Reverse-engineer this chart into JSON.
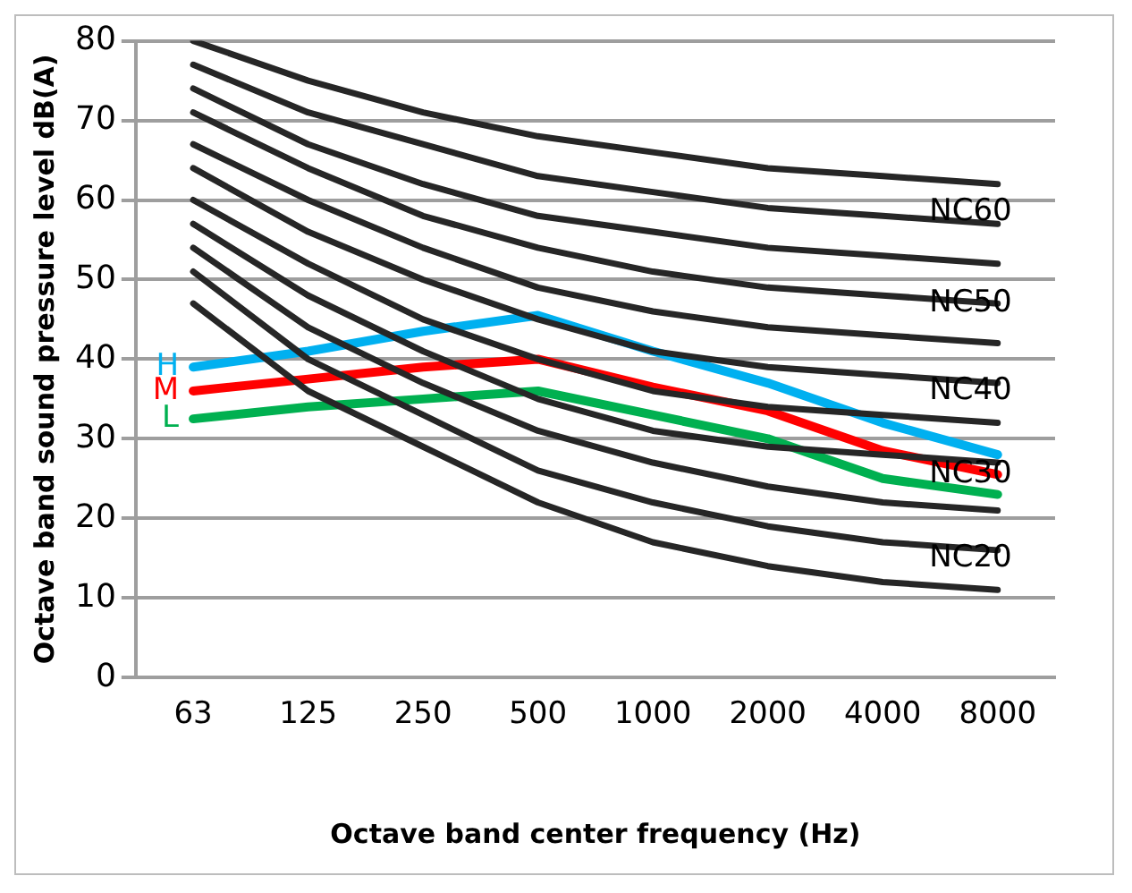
{
  "chart_data": {
    "type": "line",
    "xlabel": "Octave band center frequency (Hz)",
    "ylabel": "Octave band sound pressure level dB(A)",
    "categories": [
      "63",
      "125",
      "250",
      "500",
      "1000",
      "2000",
      "4000",
      "8000"
    ],
    "ylim": [
      0,
      80
    ],
    "yticks": [
      0,
      10,
      20,
      30,
      40,
      50,
      60,
      70,
      80
    ],
    "grid": "y",
    "legend": false,
    "marker": "none",
    "series": [
      {
        "color": "#262626",
        "values": [
          47,
          36,
          29,
          22,
          17,
          14,
          12,
          11
        ]
      },
      {
        "color": "#262626",
        "values": [
          51,
          40,
          33,
          26,
          22,
          19,
          17,
          16
        ]
      },
      {
        "color": "#262626",
        "values": [
          54,
          44,
          37,
          31,
          27,
          24,
          22,
          21
        ]
      },
      {
        "color": "#262626",
        "values": [
          57,
          48,
          41,
          35,
          31,
          29,
          28,
          27
        ]
      },
      {
        "color": "#262626",
        "values": [
          60,
          52,
          45,
          40,
          36,
          34,
          33,
          32
        ]
      },
      {
        "color": "#262626",
        "values": [
          64,
          56,
          50,
          45,
          41,
          39,
          38,
          37
        ]
      },
      {
        "color": "#262626",
        "values": [
          67,
          60,
          54,
          49,
          46,
          44,
          43,
          42
        ]
      },
      {
        "color": "#262626",
        "values": [
          71,
          64,
          58,
          54,
          51,
          49,
          48,
          47
        ]
      },
      {
        "color": "#262626",
        "values": [
          74,
          67,
          62,
          58,
          56,
          54,
          53,
          52
        ]
      },
      {
        "color": "#262626",
        "values": [
          77,
          71,
          67,
          63,
          61,
          59,
          58,
          57
        ]
      },
      {
        "color": "#262626",
        "values": [
          80,
          75,
          71,
          68,
          66,
          64,
          63,
          62
        ]
      },
      {
        "name": "H",
        "color": "#00b0f0",
        "values": [
          39,
          41,
          43.5,
          45.5,
          41,
          37,
          32,
          28
        ]
      },
      {
        "name": "M",
        "color": "#ff0000",
        "values": [
          36,
          37.5,
          39,
          40,
          36.5,
          33.5,
          28.5,
          25.5
        ]
      },
      {
        "name": "L",
        "color": "#00b050",
        "values": [
          32.5,
          34,
          35,
          36,
          33,
          30,
          25,
          23
        ]
      }
    ],
    "annotations": [
      {
        "text": "NC60",
        "x": "8000",
        "y": 58.5
      },
      {
        "text": "NC50",
        "x": "8000",
        "y": 47
      },
      {
        "text": "NC40",
        "x": "8000",
        "y": 36
      },
      {
        "text": "NC30",
        "x": "8000",
        "y": 25.5
      },
      {
        "text": "NC20",
        "x": "8000",
        "y": 15
      }
    ]
  }
}
